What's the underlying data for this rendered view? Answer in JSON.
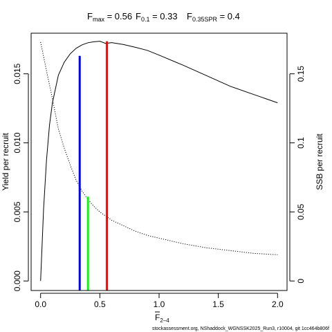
{
  "chart_data": {
    "type": "line",
    "title": {
      "fmax": {
        "base": "F",
        "sub": "max",
        "rest": " = 0.56"
      },
      "f01": {
        "base": "F",
        "sub": "0.1",
        "rest": " = 0.33"
      },
      "fspr": {
        "base": "F",
        "sub": "0.35SPR",
        "rest": " = 0.4"
      }
    },
    "xlabel": {
      "base": "F",
      "sub": "2–4"
    },
    "ylabel_left": "Yield per recruit",
    "ylabel_right": "SSB per recruit",
    "xlim": [
      -0.08,
      2.08
    ],
    "ylim_left": [
      -0.00069,
      0.01794
    ],
    "ylim_right": [
      -0.0069,
      0.1794
    ],
    "x_ticks": [
      {
        "v": 0.0,
        "label": "0.0"
      },
      {
        "v": 0.5,
        "label": "0.5"
      },
      {
        "v": 1.0,
        "label": "1.0"
      },
      {
        "v": 1.5,
        "label": "1.5"
      },
      {
        "v": 2.0,
        "label": "2.0"
      }
    ],
    "y_left_ticks": [
      {
        "v": 0.0,
        "label": "0.000"
      },
      {
        "v": 0.005,
        "label": "0.005"
      },
      {
        "v": 0.01,
        "label": "0.010"
      },
      {
        "v": 0.015,
        "label": "0.015"
      }
    ],
    "y_right_ticks": [
      {
        "v": 0.0,
        "label": "0"
      },
      {
        "v": 0.05,
        "label": "0.05"
      },
      {
        "v": 0.1,
        "label": "0.1"
      },
      {
        "v": 0.15,
        "label": "0.15"
      }
    ],
    "series": [
      {
        "axis": "left",
        "style": "solid",
        "x": [
          0,
          0.025,
          0.05,
          0.075,
          0.1,
          0.15,
          0.2,
          0.25,
          0.3,
          0.35,
          0.4,
          0.45,
          0.5,
          0.55,
          0.6,
          0.7,
          0.8,
          0.9,
          1.0,
          1.2,
          1.4,
          1.6,
          1.8,
          2.0
        ],
        "y": [
          0,
          0.0052,
          0.0088,
          0.0113,
          0.0129,
          0.0149,
          0.01585,
          0.01645,
          0.01685,
          0.0171,
          0.01725,
          0.01732,
          0.01736,
          0.0172,
          0.01726,
          0.01712,
          0.01692,
          0.0167,
          0.01635,
          0.01563,
          0.01487,
          0.0141,
          0.0135,
          0.0129
        ]
      },
      {
        "axis": "right",
        "style": "dotted",
        "x": [
          0,
          0.05,
          0.1,
          0.15,
          0.2,
          0.25,
          0.3,
          0.35,
          0.4,
          0.45,
          0.5,
          0.55,
          0.6,
          0.7,
          0.8,
          0.9,
          1.0,
          1.2,
          1.4,
          1.6,
          1.8,
          2.0
        ],
        "y": [
          0.173,
          0.152,
          0.132,
          0.11,
          0.096,
          0.084,
          0.073,
          0.065,
          0.059,
          0.054,
          0.05,
          0.047,
          0.044,
          0.04,
          0.036,
          0.033,
          0.031,
          0.027,
          0.024,
          0.022,
          0.02,
          0.019
        ]
      }
    ],
    "reference_lines": [
      {
        "name": "Fmax",
        "x": 0.56,
        "y": 0.01736,
        "color": "#ff0000"
      },
      {
        "name": "F0.1",
        "x": 0.33,
        "y": 0.0163,
        "color": "#0000ff"
      },
      {
        "name": "F0.35SPR",
        "x": 0.4,
        "y": 0.0061,
        "color": "#00ff00"
      }
    ],
    "grid": false
  },
  "footer": "stockassessment.org, NShaddock_WGNSSK2025_Run3, r10004, git 1cc464b806f"
}
